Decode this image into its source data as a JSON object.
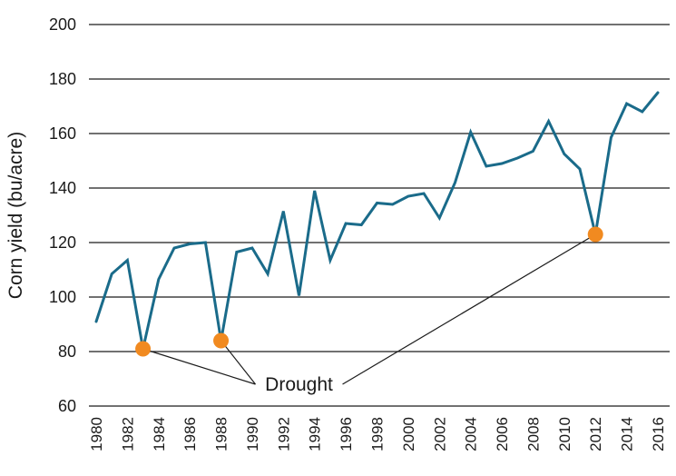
{
  "chart_data": {
    "type": "line",
    "title": "",
    "xlabel": "",
    "ylabel": "Corn yield (bu/acre)",
    "ylim": [
      60,
      200
    ],
    "xlim": [
      1980,
      2016
    ],
    "yticks": [
      60,
      80,
      100,
      120,
      140,
      160,
      180,
      200
    ],
    "xticks": [
      1980,
      1982,
      1984,
      1986,
      1988,
      1990,
      1992,
      1994,
      1996,
      1998,
      2000,
      2002,
      2004,
      2006,
      2008,
      2010,
      2012,
      2014,
      2016
    ],
    "grid": true,
    "series": [
      {
        "name": "Corn yield",
        "color": "#1a6b8a",
        "x": [
          1980,
          1981,
          1982,
          1983,
          1984,
          1985,
          1986,
          1987,
          1988,
          1989,
          1990,
          1991,
          1992,
          1993,
          1994,
          1995,
          1996,
          1997,
          1998,
          1999,
          2000,
          2001,
          2002,
          2003,
          2004,
          2005,
          2006,
          2007,
          2008,
          2009,
          2010,
          2011,
          2012,
          2013,
          2014,
          2015,
          2016
        ],
        "values": [
          91,
          108.5,
          113.5,
          81,
          106.5,
          118,
          119.5,
          120,
          84,
          116.5,
          118,
          108.5,
          131.5,
          100.5,
          139,
          113.5,
          127,
          126.5,
          134.5,
          134,
          137,
          138,
          129,
          142,
          160.5,
          148,
          149,
          151,
          153.5,
          164.5,
          152.5,
          147,
          123,
          158.5,
          171,
          168,
          175
        ]
      }
    ],
    "highlights": {
      "color": "#f18a20",
      "years": [
        1983,
        1988,
        2012
      ],
      "values": [
        81,
        84,
        123
      ]
    },
    "annotation": {
      "text": "Drought",
      "year": 1993,
      "value": 68
    }
  }
}
